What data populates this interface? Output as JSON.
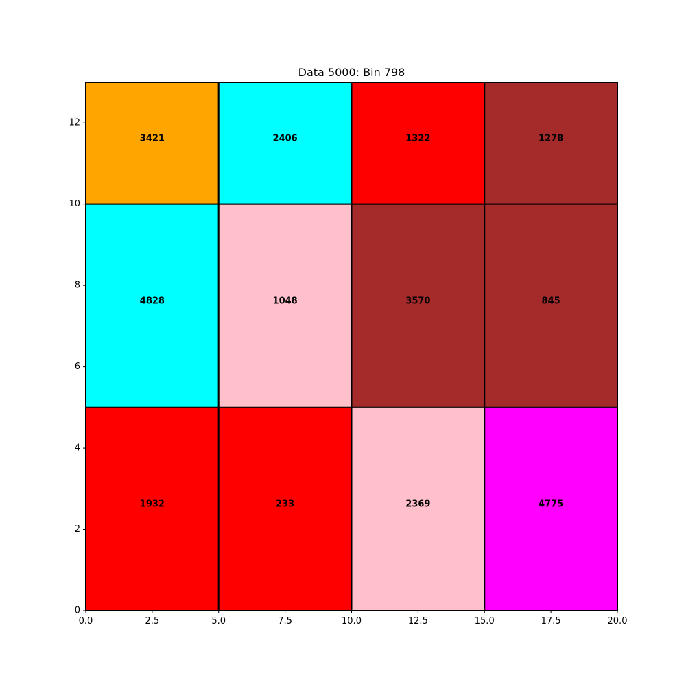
{
  "chart_data": {
    "type": "heatmap",
    "title": "Data 5000: Bin 798",
    "xlabel": "",
    "ylabel": "",
    "xlim": [
      0,
      20
    ],
    "ylim": [
      0,
      13
    ],
    "grid": false,
    "x_ticks": [
      0,
      2.5,
      5,
      7.5,
      10,
      12.5,
      15,
      17.5,
      20
    ],
    "x_tick_labels": [
      "0.0",
      "2.5",
      "5.0",
      "7.5",
      "10.0",
      "12.5",
      "15.0",
      "17.5",
      "20.0"
    ],
    "y_ticks": [
      0,
      2,
      4,
      6,
      8,
      10,
      12
    ],
    "y_tick_labels": [
      "0",
      "2",
      "4",
      "6",
      "8",
      "10",
      "12"
    ],
    "cells": [
      {
        "x0": 0,
        "x1": 5,
        "y0": 10,
        "y1": 13,
        "value": 3421,
        "color": "#FFA500"
      },
      {
        "x0": 5,
        "x1": 10,
        "y0": 10,
        "y1": 13,
        "value": 2406,
        "color": "#00FFFF"
      },
      {
        "x0": 10,
        "x1": 15,
        "y0": 10,
        "y1": 13,
        "value": 1322,
        "color": "#FF0000"
      },
      {
        "x0": 15,
        "x1": 20,
        "y0": 10,
        "y1": 13,
        "value": 1278,
        "color": "#A52A2A"
      },
      {
        "x0": 0,
        "x1": 5,
        "y0": 5,
        "y1": 10,
        "value": 4828,
        "color": "#00FFFF"
      },
      {
        "x0": 5,
        "x1": 10,
        "y0": 5,
        "y1": 10,
        "value": 1048,
        "color": "#FFC0CB"
      },
      {
        "x0": 10,
        "x1": 15,
        "y0": 5,
        "y1": 10,
        "value": 3570,
        "color": "#A52A2A"
      },
      {
        "x0": 15,
        "x1": 20,
        "y0": 5,
        "y1": 10,
        "value": 845,
        "color": "#A52A2A"
      },
      {
        "x0": 0,
        "x1": 5,
        "y0": 0,
        "y1": 5,
        "value": 1932,
        "color": "#FF0000"
      },
      {
        "x0": 5,
        "x1": 10,
        "y0": 0,
        "y1": 5,
        "value": 233,
        "color": "#FF0000"
      },
      {
        "x0": 10,
        "x1": 15,
        "y0": 0,
        "y1": 5,
        "value": 2369,
        "color": "#FFC0CB"
      },
      {
        "x0": 15,
        "x1": 20,
        "y0": 0,
        "y1": 5,
        "value": 4775,
        "color": "#FF00FF"
      }
    ]
  }
}
